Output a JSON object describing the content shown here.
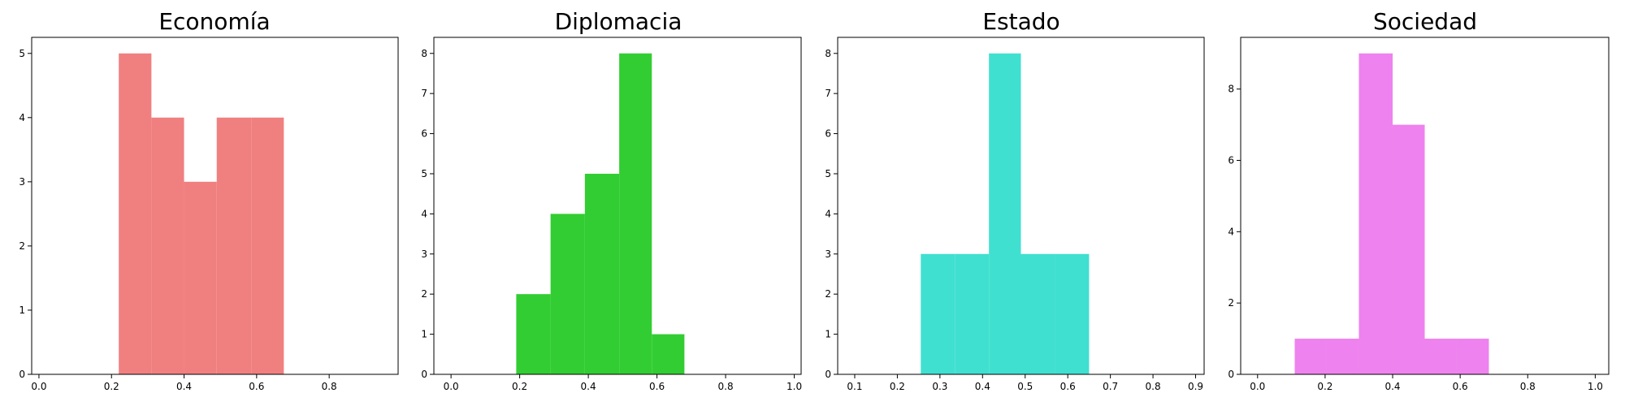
{
  "chart_data": [
    {
      "type": "bar",
      "title": "Economía",
      "color": "#f08080",
      "xlim": [
        -0.02,
        0.99
      ],
      "ylim": [
        0,
        5.25
      ],
      "xticks": [
        0.0,
        0.2,
        0.4,
        0.6,
        0.8
      ],
      "xtick_labels": [
        "0.0",
        "0.2",
        "0.4",
        "0.6",
        "0.8"
      ],
      "yticks": [
        0,
        1,
        2,
        3,
        4,
        5
      ],
      "ytick_labels": [
        "0",
        "1",
        "2",
        "3",
        "4",
        "5"
      ],
      "bins": [
        {
          "x0": 0.22,
          "x1": 0.31,
          "value": 5
        },
        {
          "x0": 0.31,
          "x1": 0.4,
          "value": 4
        },
        {
          "x0": 0.4,
          "x1": 0.49,
          "value": 3
        },
        {
          "x0": 0.49,
          "x1": 0.585,
          "value": 4
        },
        {
          "x0": 0.585,
          "x1": 0.675,
          "value": 4
        }
      ]
    },
    {
      "type": "bar",
      "title": "Diplomacia",
      "color": "#32cd32",
      "xlim": [
        -0.05,
        1.02
      ],
      "ylim": [
        0,
        8.4
      ],
      "xticks": [
        0.0,
        0.2,
        0.4,
        0.6,
        0.8,
        1.0
      ],
      "xtick_labels": [
        "0.0",
        "0.2",
        "0.4",
        "0.6",
        "0.8",
        "1.0"
      ],
      "yticks": [
        0,
        1,
        2,
        3,
        4,
        5,
        6,
        7,
        8
      ],
      "ytick_labels": [
        "0",
        "1",
        "2",
        "3",
        "4",
        "5",
        "6",
        "7",
        "8"
      ],
      "bins": [
        {
          "x0": 0.19,
          "x1": 0.29,
          "value": 2
        },
        {
          "x0": 0.29,
          "x1": 0.39,
          "value": 4
        },
        {
          "x0": 0.39,
          "x1": 0.49,
          "value": 5
        },
        {
          "x0": 0.49,
          "x1": 0.585,
          "value": 8
        },
        {
          "x0": 0.585,
          "x1": 0.68,
          "value": 1
        }
      ]
    },
    {
      "type": "bar",
      "title": "Estado",
      "color": "#40e0d0",
      "xlim": [
        0.06,
        0.92
      ],
      "ylim": [
        0,
        8.4
      ],
      "xticks": [
        0.1,
        0.2,
        0.3,
        0.4,
        0.5,
        0.6,
        0.7,
        0.8,
        0.9
      ],
      "xtick_labels": [
        "0.1",
        "0.2",
        "0.3",
        "0.4",
        "0.5",
        "0.6",
        "0.7",
        "0.8",
        "0.9"
      ],
      "yticks": [
        0,
        1,
        2,
        3,
        4,
        5,
        6,
        7,
        8
      ],
      "ytick_labels": [
        "0",
        "1",
        "2",
        "3",
        "4",
        "5",
        "6",
        "7",
        "8"
      ],
      "bins": [
        {
          "x0": 0.255,
          "x1": 0.335,
          "value": 3
        },
        {
          "x0": 0.335,
          "x1": 0.415,
          "value": 3
        },
        {
          "x0": 0.415,
          "x1": 0.49,
          "value": 8
        },
        {
          "x0": 0.49,
          "x1": 0.57,
          "value": 3
        },
        {
          "x0": 0.57,
          "x1": 0.65,
          "value": 3
        }
      ]
    },
    {
      "type": "bar",
      "title": "Sociedad",
      "color": "#ee82ee",
      "xlim": [
        -0.05,
        1.04
      ],
      "ylim": [
        0,
        9.45
      ],
      "xticks": [
        0.0,
        0.2,
        0.4,
        0.6,
        0.8,
        1.0
      ],
      "xtick_labels": [
        "0.0",
        "0.2",
        "0.4",
        "0.6",
        "0.8",
        "1.0"
      ],
      "yticks": [
        0,
        2,
        4,
        6,
        8
      ],
      "ytick_labels": [
        "0",
        "2",
        "4",
        "6",
        "8"
      ],
      "bins": [
        {
          "x0": 0.11,
          "x1": 0.205,
          "value": 1
        },
        {
          "x0": 0.205,
          "x1": 0.3,
          "value": 1
        },
        {
          "x0": 0.3,
          "x1": 0.4,
          "value": 9
        },
        {
          "x0": 0.4,
          "x1": 0.495,
          "value": 7
        },
        {
          "x0": 0.495,
          "x1": 0.59,
          "value": 1
        },
        {
          "x0": 0.59,
          "x1": 0.685,
          "value": 1
        }
      ]
    }
  ]
}
